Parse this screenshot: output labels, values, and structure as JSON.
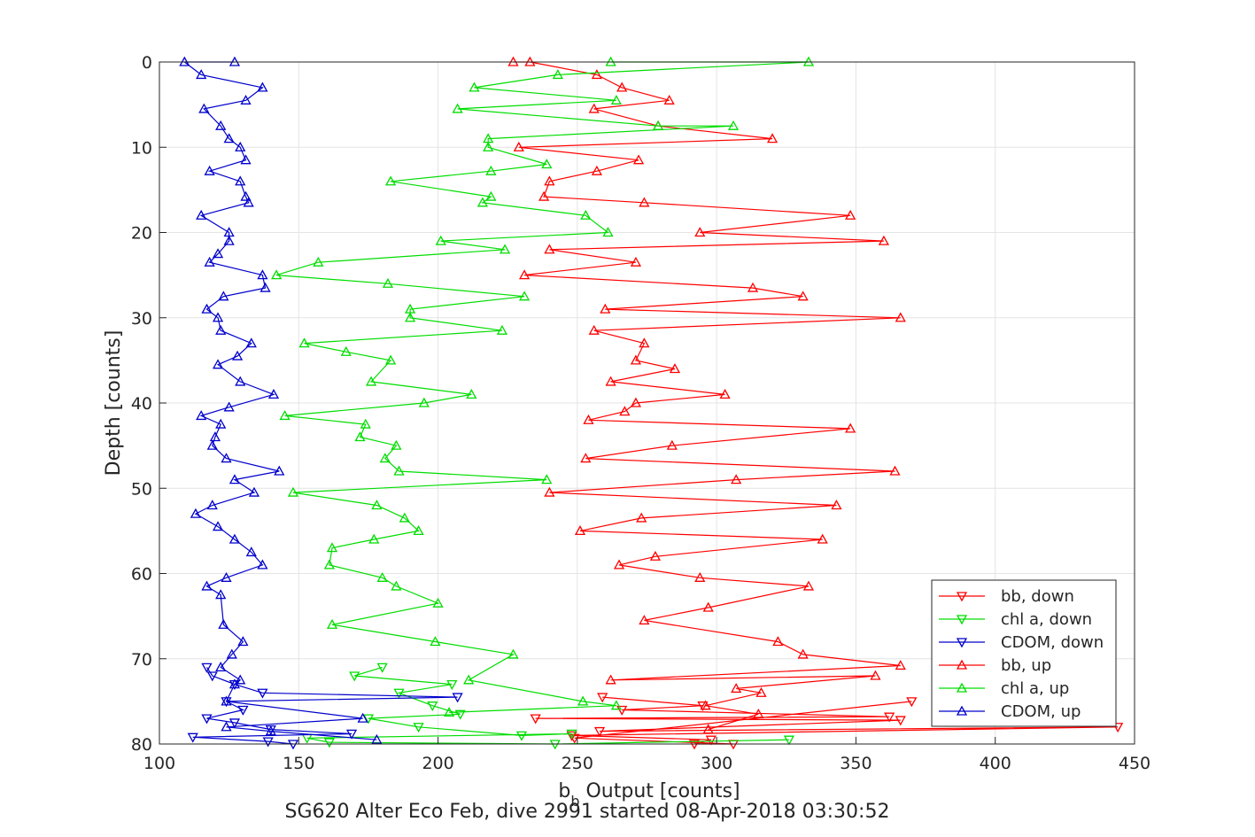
{
  "chart_data": {
    "type": "line",
    "subtitle": "SG620 Alter Eco Feb, dive 2991 started 08-Apr-2018 03:30:52",
    "xlabel_main": "b",
    "xlabel_sub": "b",
    "xlabel_rest": "  Output [counts]",
    "ylabel": "Depth [counts]",
    "xlim": [
      100,
      450
    ],
    "ylim": [
      0,
      80
    ],
    "y_reversed": true,
    "grid": true,
    "x_ticks": [
      "100",
      "150",
      "200",
      "250",
      "300",
      "350",
      "400",
      "450"
    ],
    "y_ticks": [
      "0",
      "10",
      "20",
      "30",
      "40",
      "50",
      "60",
      "70",
      "80"
    ],
    "legend_position": "bottom-right",
    "series": [
      {
        "name": "bb, down",
        "color": "#ff0000",
        "marker": "down",
        "points": [
          [
            259,
            74.5
          ],
          [
            295,
            75.5
          ],
          [
            266,
            76
          ],
          [
            362,
            76.8
          ],
          [
            235,
            77
          ],
          [
            366,
            77.2
          ],
          [
            258,
            78.5
          ],
          [
            444,
            78
          ],
          [
            248,
            79
          ],
          [
            298,
            79.5
          ],
          [
            292,
            80
          ],
          [
            306,
            80
          ],
          [
            249,
            79.3
          ],
          [
            370,
            75
          ]
        ]
      },
      {
        "name": "chl a, down",
        "color": "#00dd00",
        "marker": "down",
        "points": [
          [
            180,
            71
          ],
          [
            170,
            72
          ],
          [
            205,
            73
          ],
          [
            186,
            74
          ],
          [
            198,
            75.5
          ],
          [
            208,
            76.5
          ],
          [
            175,
            77
          ],
          [
            193,
            78
          ],
          [
            230,
            79
          ],
          [
            248,
            78.8
          ],
          [
            153,
            79.3
          ],
          [
            161,
            79.8
          ],
          [
            242,
            80
          ],
          [
            326,
            79.5
          ]
        ]
      },
      {
        "name": "CDOM, down",
        "color": "#0000cc",
        "marker": "down",
        "points": [
          [
            117,
            71
          ],
          [
            119,
            72
          ],
          [
            127,
            73
          ],
          [
            137,
            74
          ],
          [
            207,
            74.5
          ],
          [
            124,
            75
          ],
          [
            130,
            76
          ],
          [
            117,
            77
          ],
          [
            127,
            77.5
          ],
          [
            140,
            78.3
          ],
          [
            169,
            78.8
          ],
          [
            112,
            79.2
          ],
          [
            139,
            79.7
          ],
          [
            148,
            80
          ]
        ]
      },
      {
        "name": "bb, up",
        "color": "#ff0000",
        "marker": "up",
        "points": [
          [
            227,
            0
          ],
          [
            233,
            0
          ],
          [
            257,
            1.5
          ],
          [
            266,
            3
          ],
          [
            283,
            4.5
          ],
          [
            256,
            5.5
          ],
          [
            279,
            7.5
          ],
          [
            320,
            9
          ],
          [
            229,
            10
          ],
          [
            272,
            11.5
          ],
          [
            257,
            12.8
          ],
          [
            240,
            14
          ],
          [
            238,
            15.8
          ],
          [
            274,
            16.5
          ],
          [
            348,
            18
          ],
          [
            294,
            20
          ],
          [
            360,
            21
          ],
          [
            240,
            22
          ],
          [
            271,
            23.5
          ],
          [
            231,
            25
          ],
          [
            313,
            26.5
          ],
          [
            331,
            27.5
          ],
          [
            260,
            29
          ],
          [
            366,
            30
          ],
          [
            256,
            31.5
          ],
          [
            274,
            33
          ],
          [
            271,
            35
          ],
          [
            285,
            36
          ],
          [
            262,
            37.5
          ],
          [
            303,
            39
          ],
          [
            271,
            40
          ],
          [
            267,
            41
          ],
          [
            254,
            42
          ],
          [
            348,
            43
          ],
          [
            284,
            45
          ],
          [
            253,
            46.5
          ],
          [
            364,
            48
          ],
          [
            307,
            49
          ],
          [
            240,
            50.5
          ],
          [
            343,
            52
          ],
          [
            273,
            53.5
          ],
          [
            251,
            55
          ],
          [
            338,
            56
          ],
          [
            278,
            58
          ],
          [
            265,
            59
          ],
          [
            294,
            60.5
          ],
          [
            333,
            61.5
          ],
          [
            297,
            64
          ],
          [
            274,
            65.5
          ],
          [
            322,
            68
          ],
          [
            331,
            69.5
          ],
          [
            366,
            70.8
          ],
          [
            262,
            72.5
          ],
          [
            357,
            72
          ],
          [
            307,
            73.5
          ],
          [
            316,
            74
          ],
          [
            296,
            75.5
          ],
          [
            315,
            76.5
          ],
          [
            297,
            78.3
          ]
        ]
      },
      {
        "name": "chl a, up",
        "color": "#00dd00",
        "marker": "up",
        "points": [
          [
            262,
            0
          ],
          [
            333,
            0
          ],
          [
            243,
            1.5
          ],
          [
            213,
            3
          ],
          [
            264,
            4.5
          ],
          [
            207,
            5.5
          ],
          [
            279,
            7.5
          ],
          [
            306,
            7.5
          ],
          [
            218,
            9
          ],
          [
            218,
            10
          ],
          [
            239,
            12
          ],
          [
            219,
            12.8
          ],
          [
            183,
            14
          ],
          [
            219,
            15.8
          ],
          [
            216,
            16.5
          ],
          [
            253,
            18
          ],
          [
            261,
            20
          ],
          [
            201,
            21
          ],
          [
            224,
            22
          ],
          [
            157,
            23.5
          ],
          [
            142,
            25
          ],
          [
            182,
            26
          ],
          [
            231,
            27.5
          ],
          [
            190,
            29
          ],
          [
            190,
            30
          ],
          [
            223,
            31.5
          ],
          [
            152,
            33
          ],
          [
            167,
            34
          ],
          [
            183,
            35
          ],
          [
            176,
            37.5
          ],
          [
            212,
            39
          ],
          [
            195,
            40
          ],
          [
            145,
            41.5
          ],
          [
            174,
            42.5
          ],
          [
            172,
            44
          ],
          [
            185,
            45
          ],
          [
            181,
            46.5
          ],
          [
            186,
            48
          ],
          [
            239,
            49
          ],
          [
            148,
            50.5
          ],
          [
            178,
            52
          ],
          [
            188,
            53.5
          ],
          [
            193,
            55
          ],
          [
            177,
            56
          ],
          [
            162,
            57
          ],
          [
            161,
            59
          ],
          [
            180,
            60.5
          ],
          [
            185,
            61.5
          ],
          [
            200,
            63.5
          ],
          [
            162,
            66
          ],
          [
            199,
            68
          ],
          [
            227,
            69.5
          ],
          [
            211,
            72.5
          ],
          [
            252,
            75
          ],
          [
            264,
            75.5
          ],
          [
            204,
            76.3
          ]
        ]
      },
      {
        "name": "CDOM, up",
        "color": "#0000cc",
        "marker": "up",
        "points": [
          [
            127,
            0
          ],
          [
            109,
            0
          ],
          [
            115,
            1.5
          ],
          [
            137,
            3
          ],
          [
            131,
            4.5
          ],
          [
            116,
            5.5
          ],
          [
            122,
            7.5
          ],
          [
            125,
            9
          ],
          [
            129,
            10
          ],
          [
            131,
            11.5
          ],
          [
            118,
            12.8
          ],
          [
            129,
            14
          ],
          [
            131,
            15.8
          ],
          [
            132,
            16.5
          ],
          [
            115,
            18
          ],
          [
            125,
            20
          ],
          [
            125,
            21
          ],
          [
            121,
            22.5
          ],
          [
            118,
            23.5
          ],
          [
            137,
            25
          ],
          [
            138,
            26.5
          ],
          [
            123,
            27.5
          ],
          [
            117,
            29
          ],
          [
            121,
            30
          ],
          [
            122,
            31.5
          ],
          [
            133,
            33
          ],
          [
            128,
            34.5
          ],
          [
            121,
            35.5
          ],
          [
            129,
            37.5
          ],
          [
            141,
            39
          ],
          [
            125,
            40.5
          ],
          [
            115,
            41.5
          ],
          [
            122,
            42.5
          ],
          [
            120,
            44
          ],
          [
            119,
            45
          ],
          [
            124,
            46.5
          ],
          [
            143,
            48
          ],
          [
            127,
            49
          ],
          [
            134,
            50.5
          ],
          [
            119,
            52
          ],
          [
            113,
            53
          ],
          [
            121,
            54.5
          ],
          [
            127,
            56
          ],
          [
            133,
            57.5
          ],
          [
            137,
            59
          ],
          [
            124,
            60.5
          ],
          [
            117,
            61.5
          ],
          [
            122,
            62.5
          ],
          [
            123,
            66
          ],
          [
            130,
            68
          ],
          [
            126,
            69.5
          ],
          [
            122,
            71
          ],
          [
            129,
            72.5
          ],
          [
            127,
            73
          ],
          [
            124,
            75
          ],
          [
            173,
            77
          ],
          [
            124,
            78
          ],
          [
            140,
            78.5
          ],
          [
            178,
            79.5
          ]
        ]
      }
    ]
  }
}
